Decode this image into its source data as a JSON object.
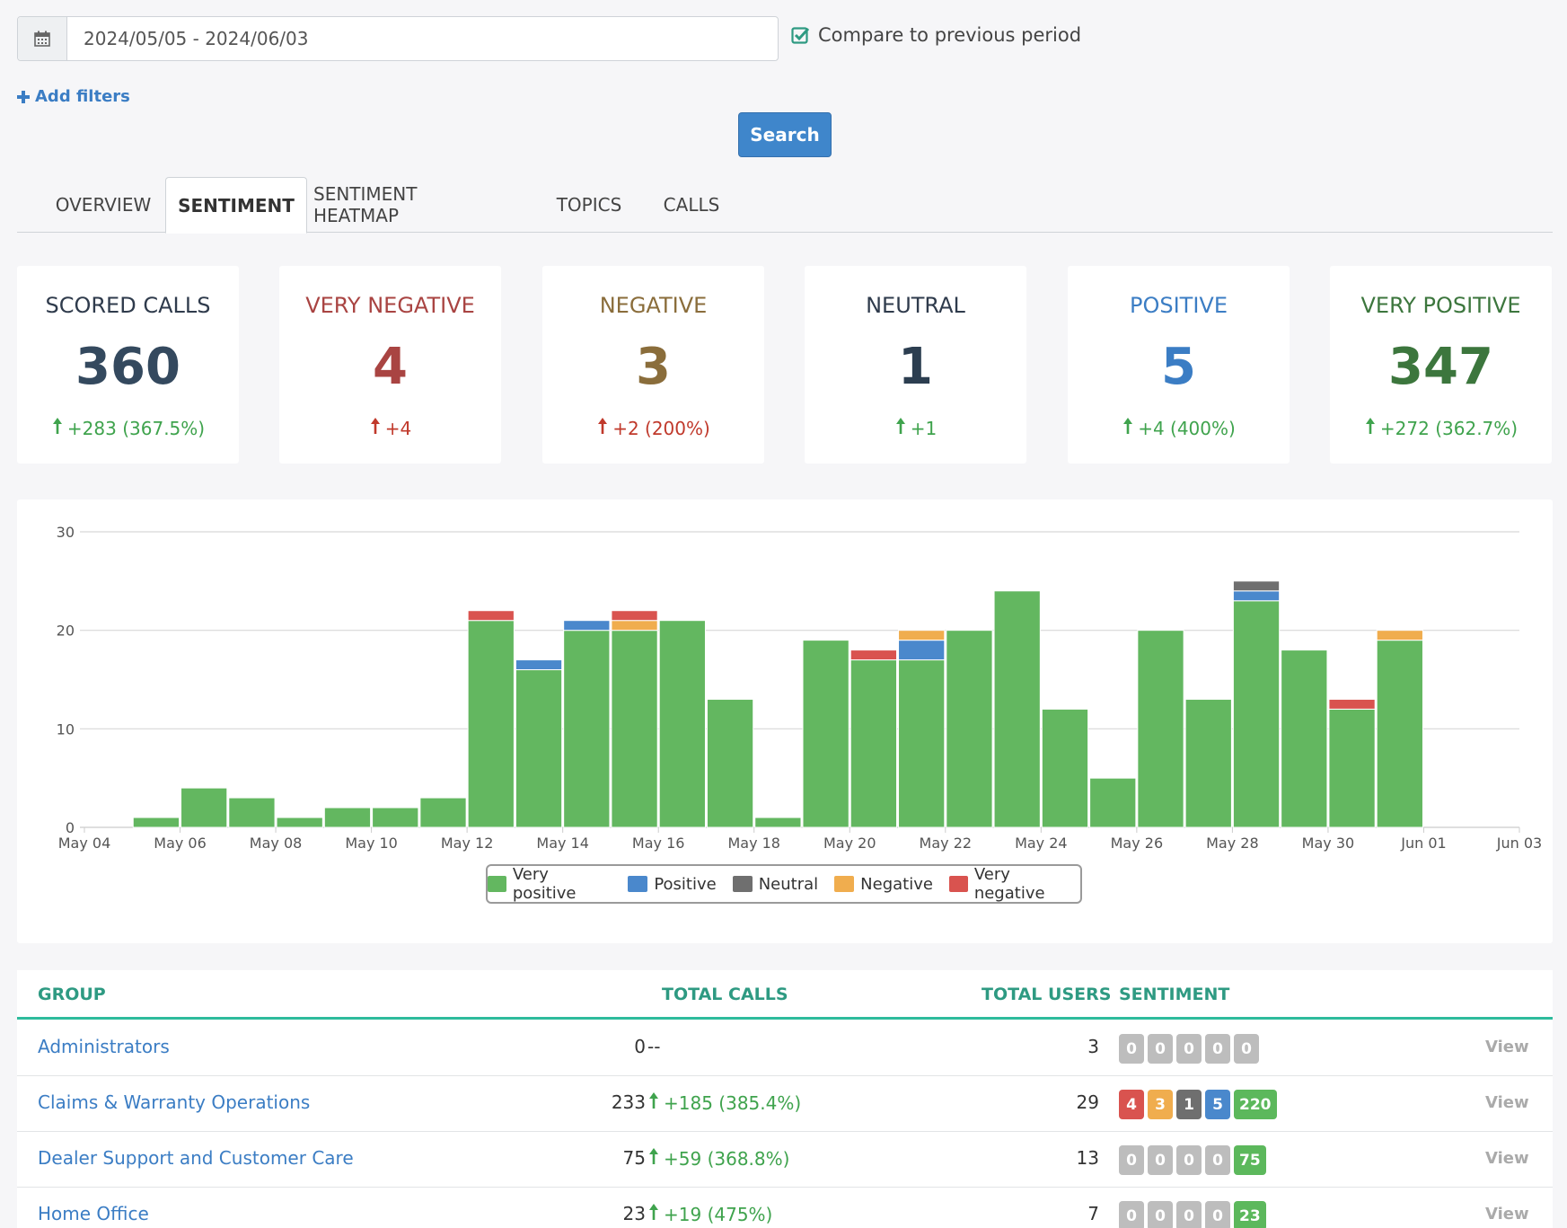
{
  "filters": {
    "date_range": "2024/05/05 - 2024/06/03",
    "compare_label": "Compare to previous period",
    "compare_checked": true,
    "add_filters_label": "Add filters",
    "search_label": "Search"
  },
  "tabs": [
    {
      "label": "OVERVIEW",
      "active": false
    },
    {
      "label": "SENTIMENT",
      "active": true
    },
    {
      "label": "SENTIMENT HEATMAP",
      "active": false
    },
    {
      "label": "TOPICS",
      "active": false
    },
    {
      "label": "CALLS",
      "active": false
    }
  ],
  "cards": [
    {
      "title": "SCORED CALLS",
      "value": "360",
      "delta": "+283 (367.5%)",
      "title_color": "#2f3b4c",
      "value_color": "#34495e",
      "delta_color": "#3fa34d"
    },
    {
      "title": "VERY NEGATIVE",
      "value": "4",
      "delta": "+4",
      "title_color": "#a94442",
      "value_color": "#a94442",
      "delta_color": "#c0392b"
    },
    {
      "title": "NEGATIVE",
      "value": "3",
      "delta": "+2 (200%)",
      "title_color": "#8a6d3b",
      "value_color": "#8a6d3b",
      "delta_color": "#c0392b"
    },
    {
      "title": "NEUTRAL",
      "value": "1",
      "delta": "+1",
      "title_color": "#2f3b4c",
      "value_color": "#2c3e50",
      "delta_color": "#3fa34d"
    },
    {
      "title": "POSITIVE",
      "value": "5",
      "delta": "+4 (400%)",
      "title_color": "#3b7dc4",
      "value_color": "#3b7dc4",
      "delta_color": "#3fa34d"
    },
    {
      "title": "VERY POSITIVE",
      "value": "347",
      "delta": "+272 (362.7%)",
      "title_color": "#3c763d",
      "value_color": "#3c763d",
      "delta_color": "#3fa34d"
    }
  ],
  "chart_data": {
    "type": "bar",
    "stacked": true,
    "x": [
      "May 04",
      "May 05",
      "May 06",
      "May 07",
      "May 08",
      "May 09",
      "May 10",
      "May 11",
      "May 12",
      "May 13",
      "May 14",
      "May 15",
      "May 16",
      "May 17",
      "May 18",
      "May 19",
      "May 20",
      "May 21",
      "May 22",
      "May 23",
      "May 24",
      "May 25",
      "May 26",
      "May 27",
      "May 28",
      "May 29",
      "May 30",
      "May 31",
      "Jun 01",
      "Jun 02",
      "Jun 03"
    ],
    "tick_labels": [
      "May 04",
      "May 06",
      "May 08",
      "May 10",
      "May 12",
      "May 14",
      "May 16",
      "May 18",
      "May 20",
      "May 22",
      "May 24",
      "May 26",
      "May 28",
      "May 30",
      "Jun 01",
      "Jun 03"
    ],
    "ylim": [
      0,
      30
    ],
    "yticks": [
      0,
      10,
      20,
      30
    ],
    "grid": true,
    "legend_position": "bottom-center",
    "series": [
      {
        "name": "Very positive",
        "color": "#63b760",
        "values": [
          0,
          1,
          4,
          3,
          1,
          2,
          2,
          3,
          21,
          16,
          20,
          20,
          21,
          13,
          1,
          19,
          17,
          17,
          20,
          24,
          12,
          5,
          20,
          13,
          23,
          18,
          12,
          19,
          0,
          0,
          0
        ]
      },
      {
        "name": "Positive",
        "color": "#4a88cc",
        "values": [
          0,
          0,
          0,
          0,
          0,
          0,
          0,
          0,
          0,
          1,
          1,
          0,
          0,
          0,
          0,
          0,
          0,
          2,
          0,
          0,
          0,
          0,
          0,
          0,
          1,
          0,
          0,
          0,
          0,
          0,
          0
        ]
      },
      {
        "name": "Neutral",
        "color": "#6f6f6f",
        "values": [
          0,
          0,
          0,
          0,
          0,
          0,
          0,
          0,
          0,
          0,
          0,
          0,
          0,
          0,
          0,
          0,
          0,
          0,
          0,
          0,
          0,
          0,
          0,
          0,
          1,
          0,
          0,
          0,
          0,
          0,
          0
        ]
      },
      {
        "name": "Negative",
        "color": "#f0ad4e",
        "values": [
          0,
          0,
          0,
          0,
          0,
          0,
          0,
          0,
          0,
          0,
          0,
          1,
          0,
          0,
          0,
          0,
          0,
          1,
          0,
          0,
          0,
          0,
          0,
          0,
          0,
          0,
          0,
          1,
          0,
          0,
          0
        ]
      },
      {
        "name": "Very negative",
        "color": "#d9534f",
        "values": [
          0,
          0,
          0,
          0,
          0,
          0,
          0,
          0,
          1,
          0,
          0,
          1,
          0,
          0,
          0,
          0,
          1,
          0,
          0,
          0,
          0,
          0,
          0,
          0,
          0,
          0,
          1,
          0,
          0,
          0,
          0
        ]
      }
    ]
  },
  "table": {
    "headers": {
      "group": "GROUP",
      "total_calls": "TOTAL CALLS",
      "total_users": "TOTAL USERS",
      "sentiment": "SENTIMENT"
    },
    "view_label": "View",
    "rows": [
      {
        "group": "Administrators",
        "total_calls": "0",
        "delta": "--",
        "delta_up": false,
        "total_users": "3",
        "sentiment": [
          "0",
          "0",
          "0",
          "0",
          "0"
        ]
      },
      {
        "group": "Claims & Warranty Operations",
        "total_calls": "233",
        "delta": "+185 (385.4%)",
        "delta_up": true,
        "total_users": "29",
        "sentiment": [
          "4",
          "3",
          "1",
          "5",
          "220"
        ]
      },
      {
        "group": "Dealer Support and Customer Care",
        "total_calls": "75",
        "delta": "+59 (368.8%)",
        "delta_up": true,
        "total_users": "13",
        "sentiment": [
          "0",
          "0",
          "0",
          "0",
          "75"
        ]
      },
      {
        "group": "Home Office",
        "total_calls": "23",
        "delta": "+19 (475%)",
        "delta_up": true,
        "total_users": "7",
        "sentiment": [
          "0",
          "0",
          "0",
          "0",
          "23"
        ]
      }
    ],
    "badge_colors": [
      "#d9534f",
      "#f0ad4e",
      "#6f6f6f",
      "#4a88cc",
      "#5cb85c"
    ],
    "badge_zero_color": "#bdbdbd"
  }
}
